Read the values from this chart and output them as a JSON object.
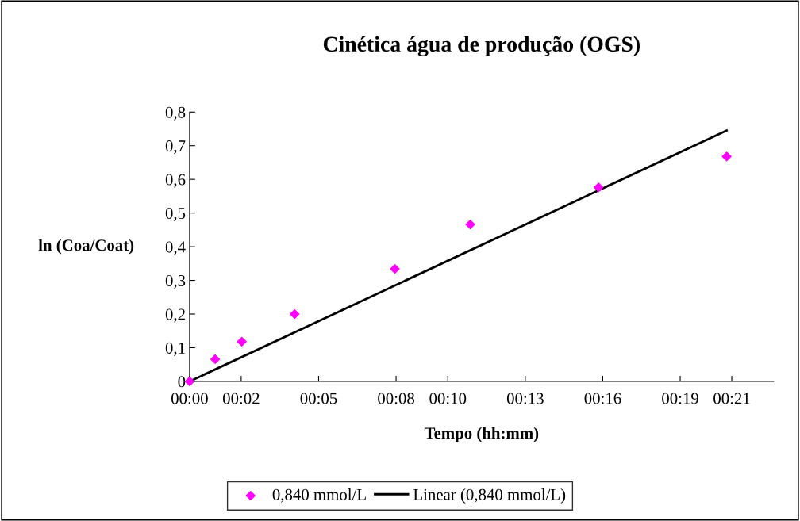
{
  "chart_data": {
    "type": "scatter",
    "title": "Cinética água de produção (OGS)",
    "xlabel": "Tempo (hh:mm)",
    "ylabel": "ln (Coa/Coat)",
    "xlim": [
      0,
      0.377
    ],
    "xticks": [
      {
        "value": 0,
        "label": "00:00"
      },
      {
        "value": 0.0333,
        "label": "00:02"
      },
      {
        "value": 0.0833,
        "label": "00:05"
      },
      {
        "value": 0.1333,
        "label": "00:08"
      },
      {
        "value": 0.1667,
        "label": "00:10"
      },
      {
        "value": 0.2167,
        "label": "00:13"
      },
      {
        "value": 0.2667,
        "label": "00:16"
      },
      {
        "value": 0.3167,
        "label": "00:19"
      },
      {
        "value": 0.35,
        "label": "00:21"
      }
    ],
    "ylim": [
      0,
      0.8
    ],
    "yticks": [
      {
        "value": 0,
        "label": "0"
      },
      {
        "value": 0.1,
        "label": "0,1"
      },
      {
        "value": 0.2,
        "label": "0,2"
      },
      {
        "value": 0.3,
        "label": "0,3"
      },
      {
        "value": 0.4,
        "label": "0,4"
      },
      {
        "value": 0.5,
        "label": "0,5"
      },
      {
        "value": 0.6,
        "label": "0,6"
      },
      {
        "value": 0.7,
        "label": "0,7"
      },
      {
        "value": 0.8,
        "label": "0,8"
      }
    ],
    "series": [
      {
        "name": "0,840 mmol/L",
        "color": "#ff00ff",
        "marker": "diamond",
        "x": [
          0,
          0.0165,
          0.0337,
          0.0678,
          0.1325,
          0.1812,
          0.264,
          0.3467
        ],
        "values": [
          0,
          0.066,
          0.118,
          0.2,
          0.334,
          0.466,
          0.576,
          0.668
        ]
      },
      {
        "name": "Linear (0,840 mmol/L)",
        "type": "line",
        "color": "#000000",
        "line_style": "solid",
        "x": [
          0,
          0.3467
        ],
        "values": [
          0,
          0.745
        ]
      }
    ],
    "grid": false,
    "legend": "bottom"
  }
}
